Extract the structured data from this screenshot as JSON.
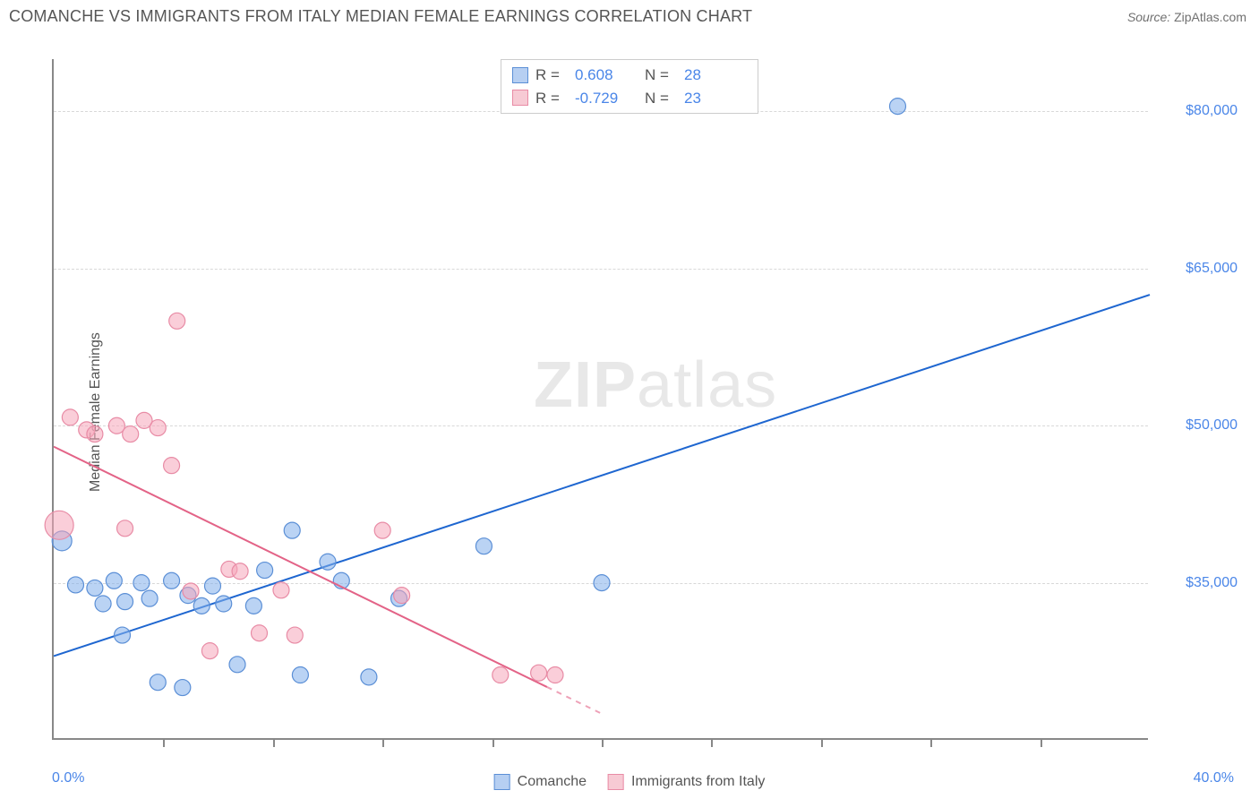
{
  "header": {
    "title": "COMANCHE VS IMMIGRANTS FROM ITALY MEDIAN FEMALE EARNINGS CORRELATION CHART",
    "source_label": "Source:",
    "source_value": "ZipAtlas.com"
  },
  "chart": {
    "type": "scatter",
    "ylabel": "Median Female Earnings",
    "xlim": [
      0,
      40
    ],
    "ylim": [
      20000,
      85000
    ],
    "xlabels": {
      "min": "0.0%",
      "max": "40.0%"
    },
    "ygrid": [
      {
        "v": 35000,
        "label": "$35,000"
      },
      {
        "v": 50000,
        "label": "$50,000"
      },
      {
        "v": 65000,
        "label": "$65,000"
      },
      {
        "v": 80000,
        "label": "$80,000"
      }
    ],
    "xticks": [
      4,
      8,
      12,
      16,
      20,
      24,
      28,
      32,
      36
    ],
    "background_color": "#ffffff",
    "grid_color": "#d8d8d8",
    "axis_color": "#888888",
    "watermark": {
      "bold": "ZIP",
      "rest": "atlas",
      "color": "#e8e8e8"
    },
    "series": [
      {
        "name": "Comanche",
        "key": "comanche",
        "color_fill": "rgba(130,175,235,0.55)",
        "color_stroke": "#5b8fd6",
        "marker_r": 9,
        "R": "0.608",
        "N": "28",
        "regression": {
          "x1": 0,
          "y1": 28000,
          "x2": 40,
          "y2": 62500,
          "color": "#1e66d0",
          "width": 2
        },
        "points": [
          {
            "x": 0.3,
            "y": 39000,
            "r": 11
          },
          {
            "x": 0.8,
            "y": 34800
          },
          {
            "x": 1.5,
            "y": 34500
          },
          {
            "x": 1.8,
            "y": 33000
          },
          {
            "x": 2.2,
            "y": 35200
          },
          {
            "x": 2.6,
            "y": 33200
          },
          {
            "x": 2.5,
            "y": 30000
          },
          {
            "x": 3.2,
            "y": 35000
          },
          {
            "x": 3.5,
            "y": 33500
          },
          {
            "x": 3.8,
            "y": 25500
          },
          {
            "x": 4.3,
            "y": 35200
          },
          {
            "x": 4.7,
            "y": 25000
          },
          {
            "x": 4.9,
            "y": 33800
          },
          {
            "x": 5.4,
            "y": 32800
          },
          {
            "x": 5.8,
            "y": 34700
          },
          {
            "x": 6.2,
            "y": 33000
          },
          {
            "x": 6.7,
            "y": 27200
          },
          {
            "x": 7.3,
            "y": 32800
          },
          {
            "x": 7.7,
            "y": 36200
          },
          {
            "x": 8.7,
            "y": 40000
          },
          {
            "x": 9.0,
            "y": 26200
          },
          {
            "x": 10.0,
            "y": 37000
          },
          {
            "x": 10.5,
            "y": 35200
          },
          {
            "x": 11.5,
            "y": 26000
          },
          {
            "x": 12.6,
            "y": 33500
          },
          {
            "x": 15.7,
            "y": 38500
          },
          {
            "x": 20.0,
            "y": 35000
          },
          {
            "x": 30.8,
            "y": 80500
          }
        ]
      },
      {
        "name": "Immigrants from Italy",
        "key": "italy",
        "color_fill": "rgba(245,165,185,0.55)",
        "color_stroke": "#e88ba5",
        "marker_r": 9,
        "R": "-0.729",
        "N": "23",
        "regression": {
          "x1": 0,
          "y1": 48000,
          "x2": 20,
          "y2": 22500,
          "dash_from_x": 18,
          "color": "#e36387",
          "width": 2
        },
        "points": [
          {
            "x": 0.2,
            "y": 40500,
            "r": 16
          },
          {
            "x": 0.6,
            "y": 50800
          },
          {
            "x": 1.2,
            "y": 49600
          },
          {
            "x": 1.5,
            "y": 49200
          },
          {
            "x": 2.3,
            "y": 50000
          },
          {
            "x": 2.8,
            "y": 49200
          },
          {
            "x": 2.6,
            "y": 40200
          },
          {
            "x": 3.3,
            "y": 50500
          },
          {
            "x": 3.8,
            "y": 49800
          },
          {
            "x": 4.3,
            "y": 46200
          },
          {
            "x": 4.5,
            "y": 60000
          },
          {
            "x": 5.0,
            "y": 34200
          },
          {
            "x": 5.7,
            "y": 28500
          },
          {
            "x": 6.4,
            "y": 36300
          },
          {
            "x": 6.8,
            "y": 36100
          },
          {
            "x": 7.5,
            "y": 30200
          },
          {
            "x": 8.3,
            "y": 34300
          },
          {
            "x": 8.8,
            "y": 30000
          },
          {
            "x": 12.0,
            "y": 40000
          },
          {
            "x": 12.7,
            "y": 33800
          },
          {
            "x": 16.3,
            "y": 26200
          },
          {
            "x": 17.7,
            "y": 26400
          },
          {
            "x": 18.3,
            "y": 26200
          }
        ]
      }
    ],
    "legend": {
      "items": [
        {
          "label": "Comanche",
          "swatch": "blue"
        },
        {
          "label": "Immigrants from Italy",
          "swatch": "pink"
        }
      ]
    }
  }
}
